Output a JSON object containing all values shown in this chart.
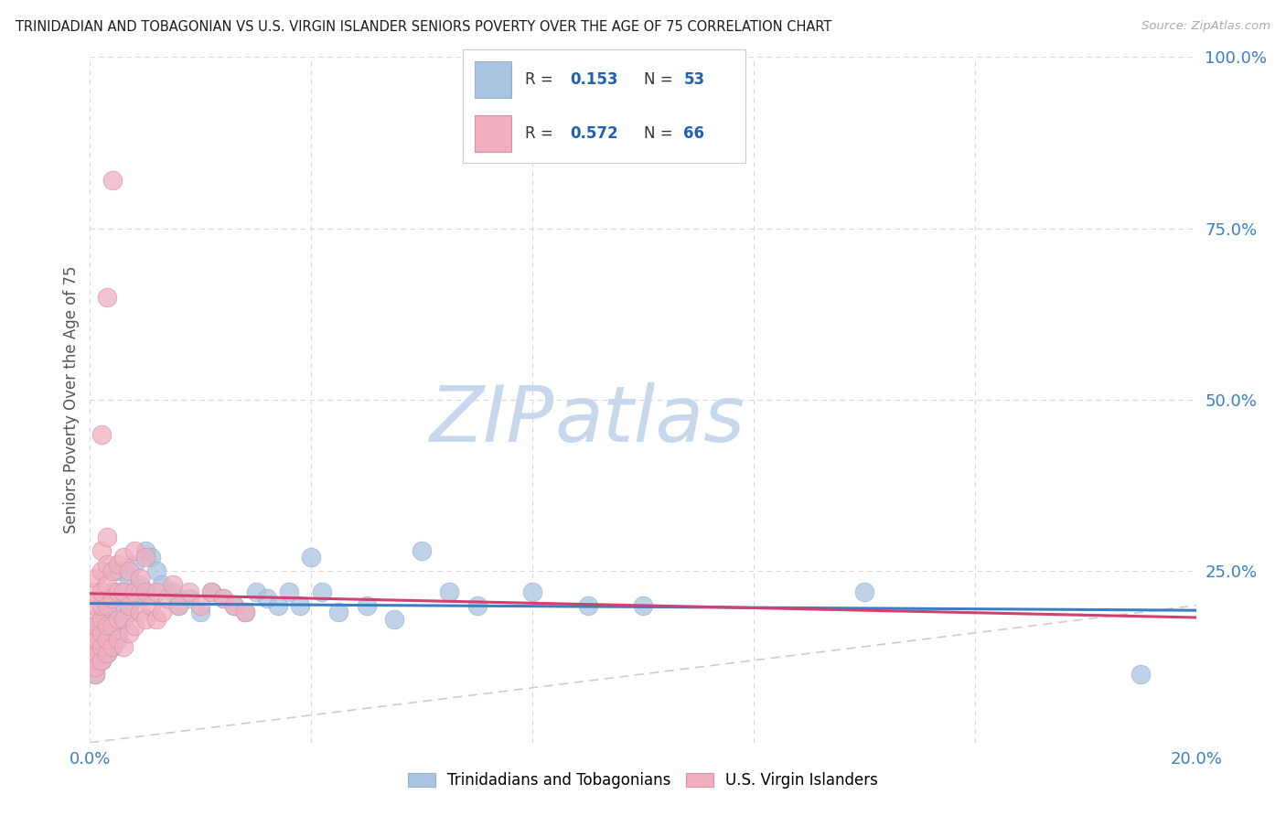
{
  "title": "TRINIDADIAN AND TOBAGONIAN VS U.S. VIRGIN ISLANDER SENIORS POVERTY OVER THE AGE OF 75 CORRELATION CHART",
  "source": "Source: ZipAtlas.com",
  "ylabel": "Seniors Poverty Over the Age of 75",
  "xlim": [
    0.0,
    0.2
  ],
  "ylim": [
    0.0,
    1.0
  ],
  "xticks": [
    0.0,
    0.04,
    0.08,
    0.12,
    0.16,
    0.2
  ],
  "xticklabels": [
    "0.0%",
    "",
    "",
    "",
    "",
    "20.0%"
  ],
  "yticks_right": [
    1.0,
    0.75,
    0.5,
    0.25
  ],
  "yticklabels_right": [
    "100.0%",
    "75.0%",
    "50.0%",
    "25.0%"
  ],
  "background_color": "#ffffff",
  "grid_color": "#d8d8d8",
  "title_color": "#1a1a1a",
  "source_color": "#aaaaaa",
  "watermark_zip": "ZIP",
  "watermark_atlas": "atlas",
  "watermark_color_zip": "#c8d8ec",
  "watermark_color_atlas": "#c8d8ec",
  "series": [
    {
      "name": "Trinidadians and Tobagonians",
      "R": 0.153,
      "N": 53,
      "marker_color": "#aac4e0",
      "marker_edge": "#90b0d0",
      "line_color": "#3a7fc1",
      "x": [
        0.001,
        0.001,
        0.001,
        0.002,
        0.002,
        0.002,
        0.003,
        0.003,
        0.003,
        0.004,
        0.004,
        0.004,
        0.005,
        0.005,
        0.005,
        0.006,
        0.006,
        0.007,
        0.007,
        0.008,
        0.008,
        0.009,
        0.01,
        0.01,
        0.011,
        0.012,
        0.013,
        0.015,
        0.016,
        0.018,
        0.02,
        0.022,
        0.024,
        0.026,
        0.028,
        0.03,
        0.032,
        0.034,
        0.036,
        0.038,
        0.04,
        0.042,
        0.045,
        0.05,
        0.055,
        0.06,
        0.065,
        0.07,
        0.08,
        0.09,
        0.1,
        0.14,
        0.19
      ],
      "y": [
        0.17,
        0.14,
        0.1,
        0.18,
        0.15,
        0.12,
        0.2,
        0.17,
        0.13,
        0.22,
        0.18,
        0.14,
        0.25,
        0.2,
        0.16,
        0.22,
        0.18,
        0.24,
        0.19,
        0.26,
        0.21,
        0.23,
        0.28,
        0.22,
        0.27,
        0.25,
        0.23,
        0.22,
        0.2,
        0.21,
        0.19,
        0.22,
        0.21,
        0.2,
        0.19,
        0.22,
        0.21,
        0.2,
        0.22,
        0.2,
        0.27,
        0.22,
        0.19,
        0.2,
        0.18,
        0.28,
        0.22,
        0.2,
        0.22,
        0.2,
        0.2,
        0.22,
        0.1
      ]
    },
    {
      "name": "U.S. Virgin Islanders",
      "R": 0.572,
      "N": 66,
      "marker_color": "#f0b0c0",
      "marker_edge": "#d890a8",
      "line_color": "#d04070",
      "x": [
        0.001,
        0.001,
        0.001,
        0.001,
        0.001,
        0.001,
        0.001,
        0.001,
        0.001,
        0.001,
        0.001,
        0.001,
        0.002,
        0.002,
        0.002,
        0.002,
        0.002,
        0.002,
        0.002,
        0.002,
        0.003,
        0.003,
        0.003,
        0.003,
        0.003,
        0.003,
        0.003,
        0.004,
        0.004,
        0.004,
        0.004,
        0.005,
        0.005,
        0.005,
        0.005,
        0.006,
        0.006,
        0.006,
        0.006,
        0.007,
        0.007,
        0.007,
        0.008,
        0.008,
        0.008,
        0.009,
        0.009,
        0.01,
        0.01,
        0.01,
        0.011,
        0.012,
        0.012,
        0.013,
        0.014,
        0.015,
        0.016,
        0.018,
        0.02,
        0.022,
        0.024,
        0.026,
        0.028,
        0.002,
        0.003,
        0.004
      ],
      "y": [
        0.1,
        0.12,
        0.14,
        0.16,
        0.18,
        0.2,
        0.22,
        0.24,
        0.13,
        0.15,
        0.17,
        0.11,
        0.12,
        0.14,
        0.16,
        0.18,
        0.2,
        0.22,
        0.25,
        0.28,
        0.13,
        0.15,
        0.17,
        0.2,
        0.23,
        0.26,
        0.3,
        0.14,
        0.17,
        0.21,
        0.25,
        0.15,
        0.18,
        0.22,
        0.26,
        0.14,
        0.18,
        0.22,
        0.27,
        0.16,
        0.2,
        0.25,
        0.17,
        0.22,
        0.28,
        0.19,
        0.24,
        0.18,
        0.22,
        0.27,
        0.2,
        0.18,
        0.22,
        0.19,
        0.21,
        0.23,
        0.2,
        0.22,
        0.2,
        0.22,
        0.21,
        0.2,
        0.19,
        0.45,
        0.65,
        0.82
      ]
    }
  ],
  "diagonal_line_color": "#cccccc",
  "legend_R_color": "#2060b0",
  "legend_N_color": "#2060b0",
  "legend_text_color": "#333333"
}
